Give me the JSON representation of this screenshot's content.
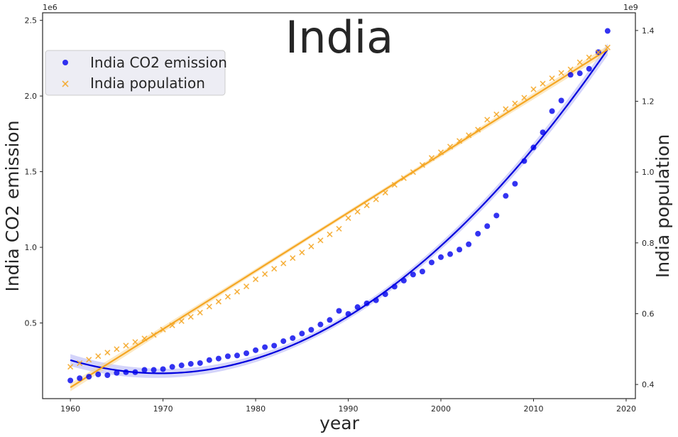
{
  "chart_data": {
    "type": "scatter",
    "title": "India",
    "xlabel": "year",
    "ylabel_left": "India  CO2 emission",
    "ylabel_right": "India  population",
    "left_offset_label": "1e6",
    "right_offset_label": "1e9",
    "xlim": [
      1957,
      2021
    ],
    "ylim_left": [
      0,
      2550000
    ],
    "ylim_right": [
      0.36,
      1.45
    ],
    "x_ticks": [
      1960,
      1970,
      1980,
      1990,
      2000,
      2010,
      2020
    ],
    "left_ticks": [
      0.5,
      1.0,
      1.5,
      2.0,
      2.5
    ],
    "right_ticks": [
      0.4,
      0.6,
      0.8,
      1.0,
      1.2,
      1.4
    ],
    "grid": false,
    "legend_position": "top-left",
    "series": [
      {
        "name": "India  CO2 emission",
        "axis": "left",
        "marker": "circle",
        "color": "#0000ee",
        "x": [
          1960,
          1961,
          1962,
          1963,
          1964,
          1965,
          1966,
          1967,
          1968,
          1969,
          1970,
          1971,
          1972,
          1973,
          1974,
          1975,
          1976,
          1977,
          1978,
          1979,
          1980,
          1981,
          1982,
          1983,
          1984,
          1985,
          1986,
          1987,
          1988,
          1989,
          1990,
          1991,
          1992,
          1993,
          1994,
          1995,
          1996,
          1997,
          1998,
          1999,
          2000,
          2001,
          2002,
          2003,
          2004,
          2005,
          2006,
          2007,
          2008,
          2009,
          2010,
          2011,
          2012,
          2013,
          2014,
          2015,
          2016,
          2017,
          2018
        ],
        "y": [
          120000,
          135000,
          145000,
          160000,
          155000,
          170000,
          175000,
          175000,
          190000,
          190000,
          195000,
          210000,
          220000,
          230000,
          235000,
          255000,
          265000,
          280000,
          285000,
          300000,
          320000,
          340000,
          350000,
          380000,
          400000,
          430000,
          455000,
          490000,
          520000,
          580000,
          560000,
          605000,
          630000,
          650000,
          690000,
          740000,
          780000,
          820000,
          840000,
          900000,
          935000,
          955000,
          985000,
          1020000,
          1090000,
          1140000,
          1210000,
          1340000,
          1420000,
          1570000,
          1660000,
          1760000,
          1900000,
          1970000,
          2140000,
          2150000,
          2180000,
          2290000,
          2430000
        ],
        "fit_color": "#0000dd"
      },
      {
        "name": "India  population",
        "axis": "right",
        "marker": "x",
        "color": "#f5a623",
        "x": [
          1960,
          1961,
          1962,
          1963,
          1964,
          1965,
          1966,
          1967,
          1968,
          1969,
          1970,
          1971,
          1972,
          1973,
          1974,
          1975,
          1976,
          1977,
          1978,
          1979,
          1980,
          1981,
          1982,
          1983,
          1984,
          1985,
          1986,
          1987,
          1988,
          1989,
          1990,
          1991,
          1992,
          1993,
          1994,
          1995,
          1996,
          1997,
          1998,
          1999,
          2000,
          2001,
          2002,
          2003,
          2004,
          2005,
          2006,
          2007,
          2008,
          2009,
          2010,
          2011,
          2012,
          2013,
          2014,
          2015,
          2016,
          2017,
          2018
        ],
        "y": [
          0.45,
          0.46,
          0.47,
          0.48,
          0.49,
          0.5,
          0.51,
          0.52,
          0.53,
          0.54,
          0.555,
          0.567,
          0.579,
          0.591,
          0.603,
          0.62,
          0.634,
          0.648,
          0.662,
          0.677,
          0.697,
          0.712,
          0.727,
          0.742,
          0.757,
          0.773,
          0.79,
          0.807,
          0.824,
          0.84,
          0.87,
          0.888,
          0.906,
          0.923,
          0.942,
          0.964,
          0.983,
          1.0,
          1.02,
          1.04,
          1.056,
          1.072,
          1.088,
          1.104,
          1.12,
          1.148,
          1.163,
          1.178,
          1.194,
          1.21,
          1.234,
          1.25,
          1.265,
          1.28,
          1.29,
          1.31,
          1.324,
          1.338,
          1.352
        ],
        "fit_color": "#f5a623"
      }
    ]
  }
}
